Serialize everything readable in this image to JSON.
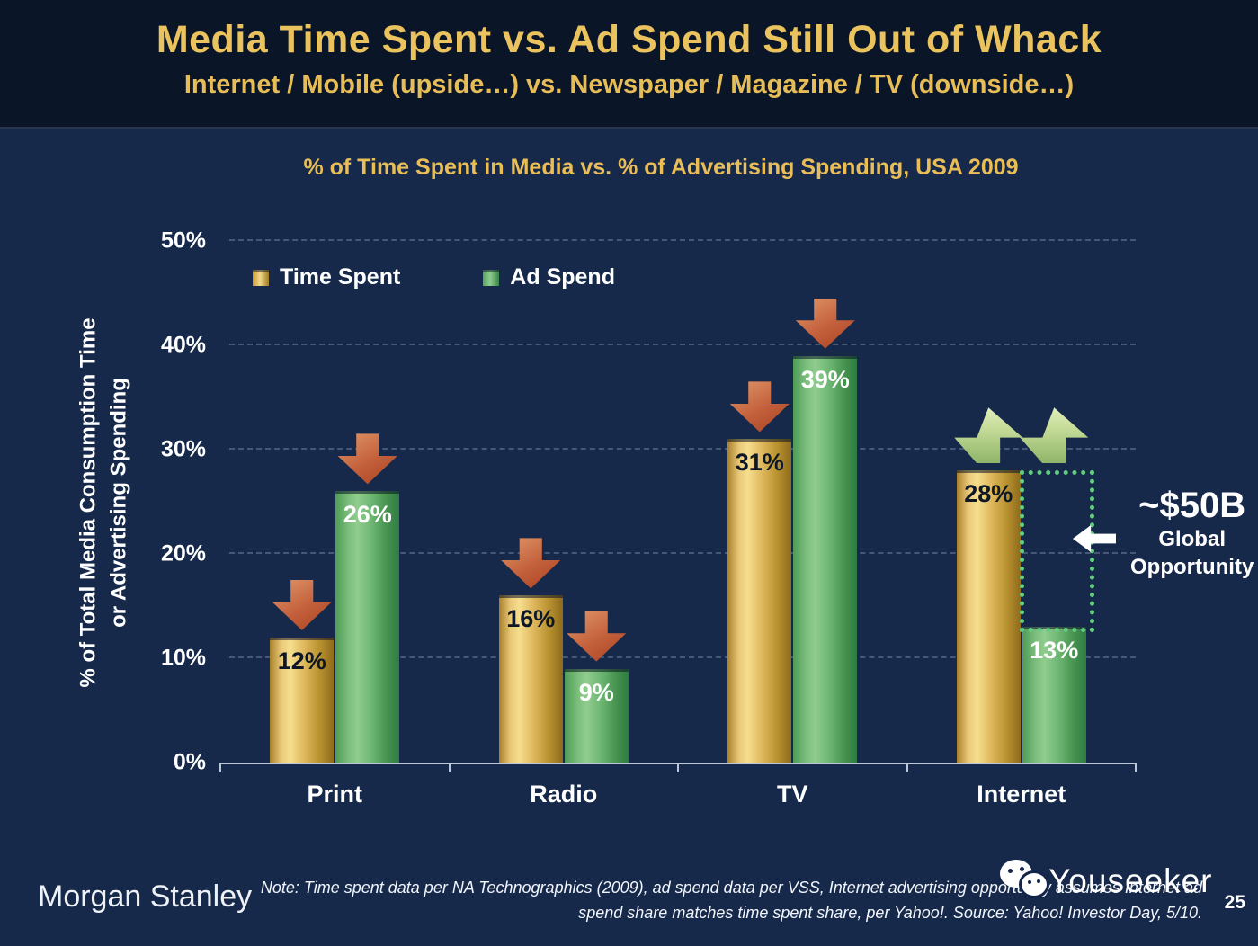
{
  "header": {
    "title": "Media Time Spent vs. Ad Spend Still Out of Whack",
    "subtitle": "Internet / Mobile (upside…) vs. Newspaper / Magazine / TV (downside…)"
  },
  "chart_data": {
    "type": "bar",
    "title": "% of Time Spent in Media vs. % of Advertising Spending, USA 2009",
    "categories": [
      "Print",
      "Radio",
      "TV",
      "Internet"
    ],
    "series": [
      {
        "name": "Time Spent",
        "color_key": "gold",
        "value_label": "dark",
        "values": [
          12,
          16,
          31,
          28
        ]
      },
      {
        "name": "Ad Spend",
        "color_key": "green",
        "value_label": "light",
        "values": [
          26,
          9,
          39,
          13
        ]
      }
    ],
    "value_suffix": "%",
    "ylabel_line1": "% of Total Media Consumption Time",
    "ylabel_line2": "or Advertising Spending",
    "yticks": [
      "0%",
      "10%",
      "20%",
      "30%",
      "40%",
      "50%"
    ],
    "ylim": [
      0,
      50
    ],
    "grid": "dashed-horizontal",
    "legend_position": "top-left",
    "arrows": [
      [
        {
          "dir": "down",
          "at": 12
        },
        {
          "dir": "down",
          "at": 26
        }
      ],
      [
        {
          "dir": "down",
          "at": 16
        },
        {
          "dir": "down",
          "at": 9
        }
      ],
      [
        {
          "dir": "down",
          "at": 31
        },
        {
          "dir": "down",
          "at": 39
        }
      ],
      [
        {
          "dir": "up",
          "at": 28
        },
        {
          "dir": "up",
          "at": 28
        }
      ]
    ],
    "opportunity_box": {
      "category_index": 3,
      "series_index": 1,
      "from": 13,
      "to": 28
    },
    "annotation": {
      "headline": "~$50B",
      "line1": "Global",
      "line2": "Opportunity"
    }
  },
  "footer": {
    "brand": "Morgan Stanley",
    "note_line1": "Note: Time spent data per NA Technographics (2009), ad spend data per VSS, Internet advertising opportunity assumes Internet ad",
    "note_line2": "spend share matches time spent share, per Yahoo!. Source: Yahoo! Investor Day, 5/10.",
    "page_number": "25",
    "watermark": "Youseeker"
  },
  "colors": {
    "header_background": "#0A1628",
    "body_background": "#16294A",
    "accent_gold": "#E9BE58",
    "bar_gold_light": "#F6DE8E",
    "bar_gold_dark": "#8E6A1C",
    "bar_green_light": "#90CC8E",
    "bar_green_dark": "#2E7C44",
    "arrow_down_red": "#C3603C",
    "arrow_up_green": "#C3DA96",
    "opportunity_dotted_green": "#63CE80",
    "axis_line": "#BCC8DA",
    "text_white": "#FFFFFF"
  }
}
